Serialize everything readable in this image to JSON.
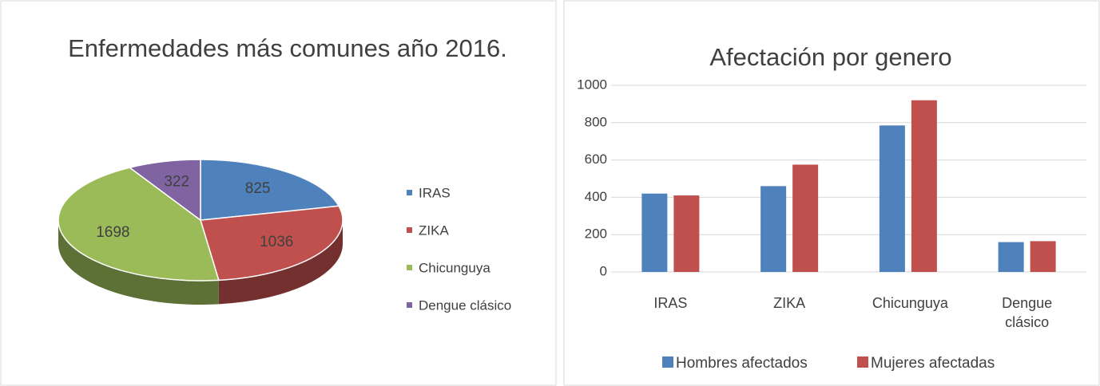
{
  "chart_data": [
    {
      "type": "pie",
      "title": "Enfermedades  más comunes año 2016.",
      "categories": [
        "IRAS",
        "ZIKA",
        "Chicunguya",
        "Dengue clásico"
      ],
      "values": [
        825,
        1036,
        1698,
        322
      ],
      "colors": [
        "#4f81bd",
        "#c0504d",
        "#9bbb59",
        "#8064a2"
      ],
      "legend": "right"
    },
    {
      "type": "bar",
      "title": "Afectación por genero",
      "categories": [
        "IRAS",
        "ZIKA",
        "Chicunguya",
        "Dengue clásico"
      ],
      "series": [
        {
          "name": "Hombres afectados",
          "color": "#4f81bd",
          "values": [
            420,
            460,
            785,
            160
          ]
        },
        {
          "name": "Mujeres afectadas",
          "color": "#c0504d",
          "values": [
            410,
            575,
            920,
            165
          ]
        }
      ],
      "ylim": [
        0,
        1000
      ],
      "yticks": [
        0,
        200,
        400,
        600,
        800,
        1000
      ],
      "grid": true,
      "legend": "bottom"
    }
  ]
}
